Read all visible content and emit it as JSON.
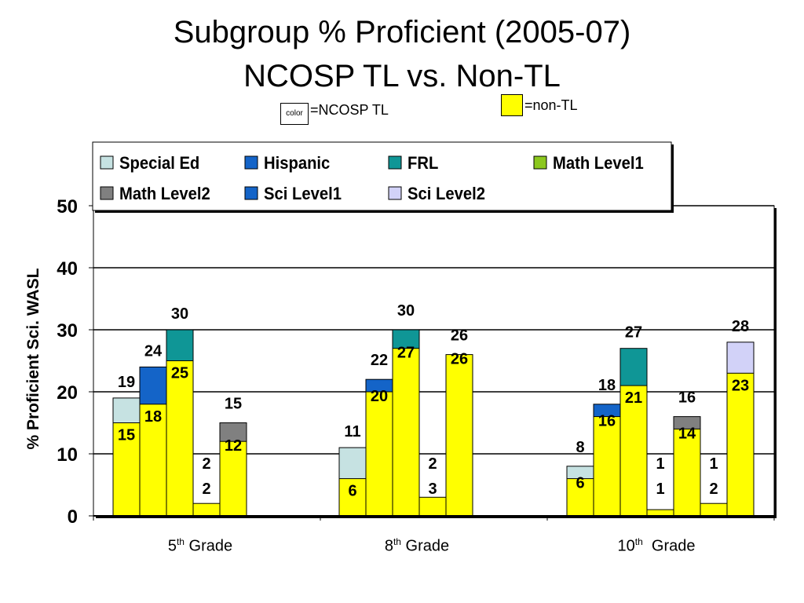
{
  "title_line1": "Subgroup % Proficient  (2005-07)",
  "title_line2": "NCOSP TL  vs.  Non-TL",
  "key": {
    "ncosp_box_label": "color",
    "ncosp_label": "=NCOSP TL",
    "nontl_label": "=non-TL",
    "nontl_color": "#ffff00"
  },
  "chart_data": {
    "type": "bar",
    "stacked": true,
    "ylabel": "% Proficient Sci. WASL",
    "ylim": [
      0,
      50
    ],
    "yticks": [
      "0",
      "10",
      "20",
      "30",
      "40",
      "50"
    ],
    "grid": true,
    "legend_position": "top",
    "categories": [
      {
        "base": "5",
        "sup": "th",
        "rest": " Grade"
      },
      {
        "base": "8",
        "sup": "th",
        "rest": " Grade"
      },
      {
        "base": "10",
        "sup": "th",
        "rest": "  Grade"
      }
    ],
    "series": [
      {
        "name": "Special Ed",
        "color": "#c6e2e2"
      },
      {
        "name": "Hispanic",
        "color": "#1464c8"
      },
      {
        "name": "FRL",
        "color": "#0f9696"
      },
      {
        "name": "Math Level1",
        "color": "#8cc81e"
      },
      {
        "name": "Math Level2",
        "color": "#808080"
      },
      {
        "name": "Sci Level1",
        "color": "#1464c8"
      },
      {
        "name": "Sci Level2",
        "color": "#d2d2f8"
      }
    ],
    "bars": [
      {
        "group": 0,
        "slot": 0,
        "series": "Special Ed",
        "tl": 19,
        "non_tl": 15
      },
      {
        "group": 0,
        "slot": 1,
        "series": "Hispanic",
        "tl": 24,
        "non_tl": 18
      },
      {
        "group": 0,
        "slot": 2,
        "series": "FRL",
        "tl": 30,
        "non_tl": 25
      },
      {
        "group": 0,
        "slot": 3,
        "series": "Math Level1",
        "tl": 2,
        "non_tl": 2
      },
      {
        "group": 0,
        "slot": 4,
        "series": "Math Level2",
        "tl": 15,
        "non_tl": 12
      },
      {
        "group": 1,
        "slot": 0,
        "series": "Special Ed",
        "tl": 11,
        "non_tl": 6
      },
      {
        "group": 1,
        "slot": 1,
        "series": "Hispanic",
        "tl": 22,
        "non_tl": 20
      },
      {
        "group": 1,
        "slot": 2,
        "series": "FRL",
        "tl": 30,
        "non_tl": 27
      },
      {
        "group": 1,
        "slot": 3,
        "series": "Math Level1",
        "tl": 2,
        "non_tl": 3
      },
      {
        "group": 1,
        "slot": 4,
        "series": "Sci Level2",
        "tl": 26,
        "non_tl": 26
      },
      {
        "group": 2,
        "slot": 0,
        "series": "Special Ed",
        "tl": 8,
        "non_tl": 6
      },
      {
        "group": 2,
        "slot": 1,
        "series": "Hispanic",
        "tl": 18,
        "non_tl": 16
      },
      {
        "group": 2,
        "slot": 2,
        "series": "FRL",
        "tl": 27,
        "non_tl": 21
      },
      {
        "group": 2,
        "slot": 3,
        "series": "Math Level1",
        "tl": 1,
        "non_tl": 1
      },
      {
        "group": 2,
        "slot": 4,
        "series": "Math Level2",
        "tl": 16,
        "non_tl": 14
      },
      {
        "group": 2,
        "slot": 5,
        "series": "Math Level1",
        "tl": 1,
        "non_tl": 2
      },
      {
        "group": 2,
        "slot": 6,
        "series": "Sci Level2",
        "tl": 28,
        "non_tl": 23
      }
    ]
  }
}
